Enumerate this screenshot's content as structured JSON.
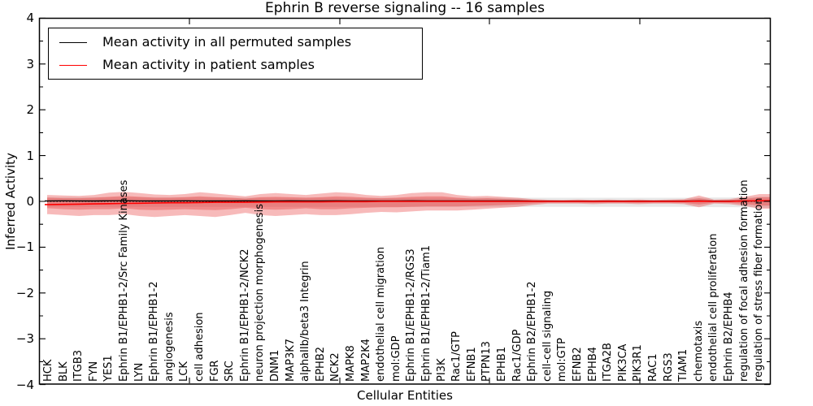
{
  "title": "Ephrin B reverse signaling -- 16 samples",
  "axes": {
    "ylabel": "Inferred Activity",
    "xlabel": "Cellular Entities"
  },
  "legend": {
    "items": [
      {
        "label": "Mean activity in all permuted samples",
        "color": "#000000"
      },
      {
        "label": "Mean activity in patient samples",
        "color": "#ff0000"
      }
    ]
  },
  "colors": {
    "patient_line": "#ff0000",
    "permuted_line": "#000000",
    "patient_band": "rgba(230,40,40,0.32)",
    "permuted_band": "#e8e8e8",
    "zero_line": "#000000",
    "frame": "#000000"
  },
  "chart_data": {
    "type": "area",
    "title": "Ephrin B reverse signaling -- 16 samples",
    "xlabel": "Cellular Entities",
    "ylabel": "Inferred Activity",
    "ylim": [
      -4,
      4
    ],
    "grid": false,
    "legend_position": "upper left",
    "yticks": {
      "values": [
        4,
        3,
        2,
        1,
        0,
        -1,
        -2,
        -3,
        -4
      ],
      "labels": [
        "4",
        "3",
        "2",
        "1",
        "0",
        "−1",
        "−2",
        "−3",
        "−4"
      ]
    },
    "categories": [
      "HCK",
      "BLK",
      "ITGB3",
      "FYN",
      "YES1",
      "Ephrin B1/EPHB1-2/Src Family Kinases",
      "LYN",
      "Ephrin B1/EPHB1-2",
      "angiogenesis",
      "LCK",
      "cell adhesion",
      "FGR",
      "SRC",
      "Ephrin B1/EPHB1-2/NCK2",
      "neuron projection morphogenesis",
      "DNM1",
      "MAP3K7",
      "alphaIIb/beta3 Integrin",
      "EPHB2",
      "NCK2",
      "MAPK8",
      "MAP2K4",
      "endothelial cell migration",
      "mol:GDP",
      "Ephrin B1/EPHB1-2/RGS3",
      "Ephrin B1/EPHB1-2/Tiam1",
      "PI3K",
      "Rac1/GTP",
      "EFNB1",
      "PTPN13",
      "EPHB1",
      "Rac1/GDP",
      "Ephrin B2/EPHB1-2",
      "cell-cell signaling",
      "mol:GTP",
      "EFNB2",
      "EPHB4",
      "ITGA2B",
      "PIK3CA",
      "PIK3R1",
      "RAC1",
      "RGS3",
      "TIAM1",
      "chemotaxis",
      "endothelial cell proliferation",
      "Ephrin B2/EPHB4",
      "regulation of focal adhesion formation",
      "regulation of stress fiber formation"
    ],
    "series": [
      {
        "name": "Mean activity in all permuted samples",
        "values": [
          0.01,
          0.012,
          0.01,
          0.008,
          0.012,
          0.015,
          0.01,
          0.008,
          0.01,
          0.012,
          0.01,
          0.008,
          0.01,
          0.012,
          0.01,
          0.01,
          0.012,
          0.008,
          0.01,
          0.012,
          0.01,
          0.008,
          0.01,
          0.01,
          0.012,
          0.01,
          0.01,
          0.008,
          0.01,
          0.01,
          0.008,
          0.008,
          0.006,
          0.006,
          0.005,
          0.005,
          0.005,
          0.005,
          0.005,
          0.005,
          0.005,
          0.005,
          0.005,
          0.008,
          0.005,
          0.005,
          0.008,
          0.01
        ]
      },
      {
        "name": "Mean activity in patient samples",
        "values": [
          -0.07,
          -0.065,
          -0.06,
          -0.055,
          -0.05,
          -0.045,
          -0.04,
          -0.035,
          -0.03,
          -0.03,
          -0.025,
          -0.02,
          -0.02,
          -0.02,
          -0.015,
          -0.01,
          -0.01,
          -0.01,
          -0.01,
          -0.005,
          -0.005,
          -0.005,
          0,
          0,
          0,
          0,
          0,
          0,
          0,
          0,
          0,
          0,
          0,
          0,
          0,
          0,
          0,
          0,
          0,
          0,
          0,
          0,
          0,
          0.005,
          0,
          0,
          0.008,
          0.015
        ]
      }
    ],
    "bands": {
      "patient_outer_hi": [
        0.14,
        0.13,
        0.12,
        0.14,
        0.19,
        0.21,
        0.18,
        0.15,
        0.14,
        0.16,
        0.2,
        0.17,
        0.14,
        0.11,
        0.16,
        0.18,
        0.16,
        0.14,
        0.17,
        0.2,
        0.18,
        0.14,
        0.12,
        0.14,
        0.18,
        0.2,
        0.2,
        0.14,
        0.11,
        0.12,
        0.1,
        0.08,
        0.05,
        0.035,
        0.03,
        0.04,
        0.03,
        0.04,
        0.03,
        0.04,
        0.03,
        0.04,
        0.05,
        0.13,
        0.04,
        0.05,
        0.1,
        0.16
      ],
      "patient_outer_lo": [
        -0.28,
        -0.3,
        -0.32,
        -0.3,
        -0.3,
        -0.28,
        -0.32,
        -0.34,
        -0.32,
        -0.3,
        -0.32,
        -0.34,
        -0.3,
        -0.25,
        -0.3,
        -0.32,
        -0.3,
        -0.28,
        -0.3,
        -0.3,
        -0.28,
        -0.25,
        -0.23,
        -0.24,
        -0.22,
        -0.2,
        -0.2,
        -0.2,
        -0.18,
        -0.16,
        -0.14,
        -0.12,
        -0.08,
        -0.05,
        -0.05,
        -0.05,
        -0.06,
        -0.05,
        -0.05,
        -0.06,
        -0.05,
        -0.05,
        -0.06,
        -0.13,
        -0.05,
        -0.06,
        -0.1,
        -0.16
      ],
      "patient_inner_hi": [
        0.08,
        0.07,
        0.07,
        0.08,
        0.1,
        0.12,
        0.1,
        0.08,
        0.08,
        0.09,
        0.11,
        0.09,
        0.08,
        0.06,
        0.09,
        0.1,
        0.09,
        0.08,
        0.09,
        0.11,
        0.1,
        0.08,
        0.07,
        0.08,
        0.1,
        0.11,
        0.11,
        0.08,
        0.06,
        0.07,
        0.055,
        0.045,
        0.03,
        0.02,
        0.018,
        0.022,
        0.018,
        0.022,
        0.018,
        0.022,
        0.018,
        0.022,
        0.028,
        0.07,
        0.022,
        0.028,
        0.055,
        0.09
      ],
      "patient_inner_lo": [
        -0.15,
        -0.17,
        -0.18,
        -0.17,
        -0.17,
        -0.15,
        -0.18,
        -0.19,
        -0.18,
        -0.17,
        -0.18,
        -0.19,
        -0.17,
        -0.14,
        -0.17,
        -0.18,
        -0.17,
        -0.15,
        -0.17,
        -0.17,
        -0.15,
        -0.14,
        -0.13,
        -0.13,
        -0.12,
        -0.11,
        -0.11,
        -0.11,
        -0.1,
        -0.09,
        -0.08,
        -0.065,
        -0.045,
        -0.028,
        -0.028,
        -0.028,
        -0.033,
        -0.028,
        -0.028,
        -0.033,
        -0.028,
        -0.028,
        -0.033,
        -0.07,
        -0.028,
        -0.033,
        -0.055,
        -0.09
      ],
      "permuted_hi": [
        0.09,
        0.09,
        0.09,
        0.09,
        0.09,
        0.09,
        0.09,
        0.09,
        0.09,
        0.09,
        0.09,
        0.09,
        0.085,
        0.085,
        0.085,
        0.085,
        0.085,
        0.085,
        0.085,
        0.085,
        0.08,
        0.08,
        0.08,
        0.08,
        0.08,
        0.08,
        0.08,
        0.08,
        0.08,
        0.08,
        0.08,
        0.08,
        0.08,
        0.08,
        0.08,
        0.08,
        0.08,
        0.08,
        0.08,
        0.08,
        0.08,
        0.08,
        0.08,
        0.08,
        0.085,
        0.085,
        0.09,
        0.1
      ],
      "permuted_lo": [
        -0.12,
        -0.12,
        -0.12,
        -0.12,
        -0.12,
        -0.12,
        -0.12,
        -0.12,
        -0.12,
        -0.12,
        -0.12,
        -0.12,
        -0.12,
        -0.12,
        -0.12,
        -0.12,
        -0.12,
        -0.12,
        -0.12,
        -0.12,
        -0.12,
        -0.12,
        -0.12,
        -0.12,
        -0.12,
        -0.12,
        -0.12,
        -0.12,
        -0.12,
        -0.12,
        -0.12,
        -0.12,
        -0.12,
        -0.12,
        -0.12,
        -0.12,
        -0.12,
        -0.12,
        -0.12,
        -0.12,
        -0.12,
        -0.12,
        -0.12,
        -0.12,
        -0.125,
        -0.125,
        -0.13,
        -0.14
      ]
    }
  }
}
